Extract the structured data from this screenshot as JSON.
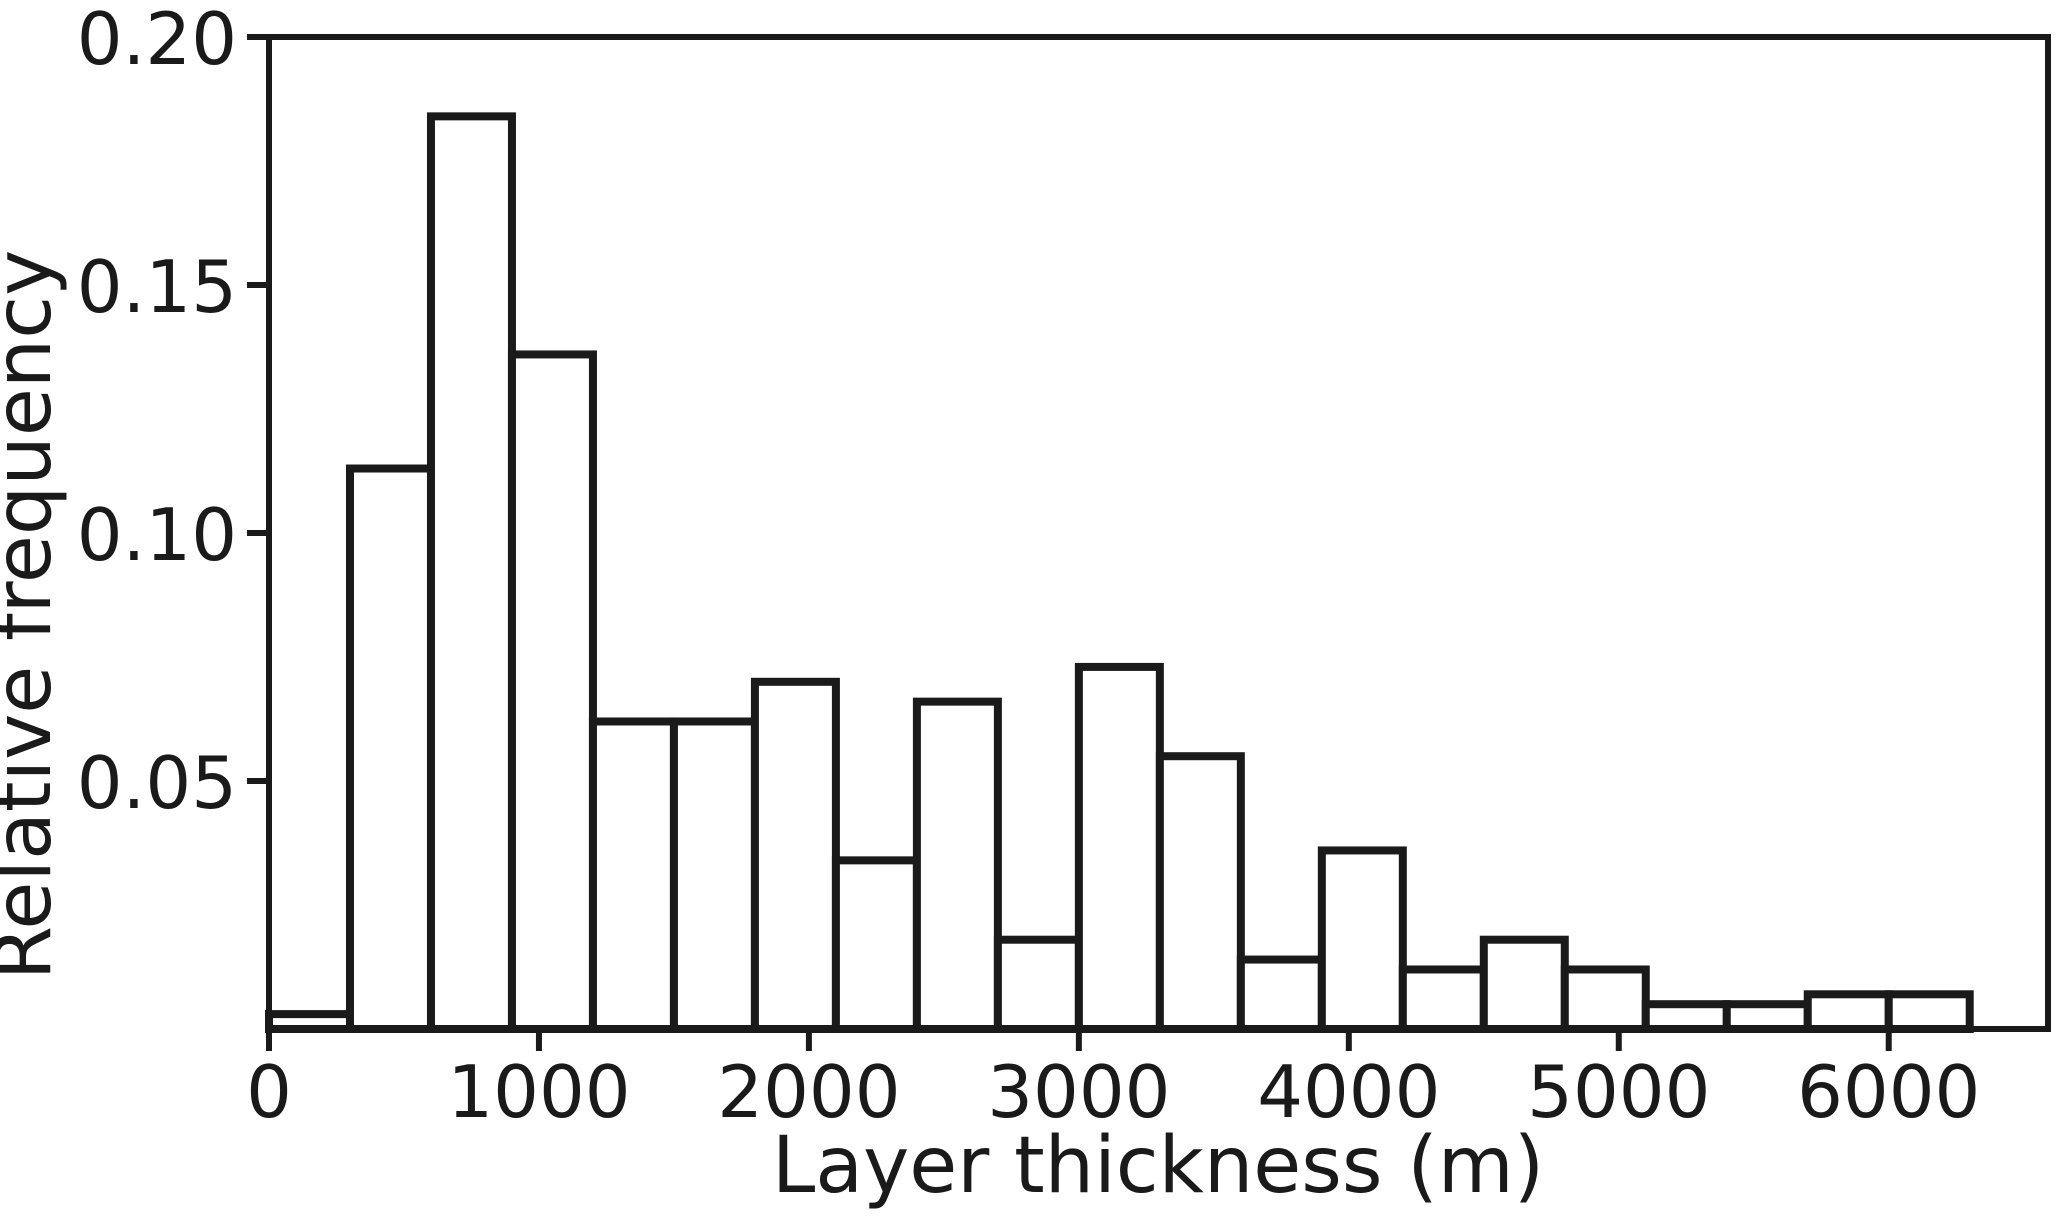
{
  "chart_data": {
    "type": "bar",
    "subtype": "histogram",
    "title": "",
    "xlabel": "Layer thickness (m)",
    "ylabel": "Relative frequency",
    "bin_width": 300,
    "bin_edges": [
      0,
      300,
      600,
      900,
      1200,
      1500,
      1800,
      2100,
      2400,
      2700,
      3000,
      3300,
      3600,
      3900,
      4200,
      4500,
      4800,
      5100,
      5400,
      5700,
      6000,
      6300
    ],
    "values": [
      0.003,
      0.113,
      0.184,
      0.136,
      0.062,
      0.062,
      0.07,
      0.034,
      0.066,
      0.018,
      0.073,
      0.055,
      0.014,
      0.036,
      0.012,
      0.018,
      0.012,
      0.005,
      0.005,
      0.007,
      0.007
    ],
    "xlim": [
      0,
      6590
    ],
    "ylim": [
      0,
      0.2
    ],
    "xticks": [
      0,
      1000,
      2000,
      3000,
      4000,
      5000,
      6000
    ],
    "xtick_labels": [
      "0",
      "1000",
      "2000",
      "3000",
      "4000",
      "5000",
      "6000"
    ],
    "yticks": [
      0.05,
      0.1,
      0.15,
      0.2
    ],
    "ytick_labels": [
      "0.05",
      "0.10",
      "0.15",
      "0.20"
    ],
    "grid": false,
    "legend": false,
    "bar_fill": "#ffffff",
    "line_color": "#1a1a1a",
    "bar_edge_width": 8,
    "spine_width": 6
  }
}
